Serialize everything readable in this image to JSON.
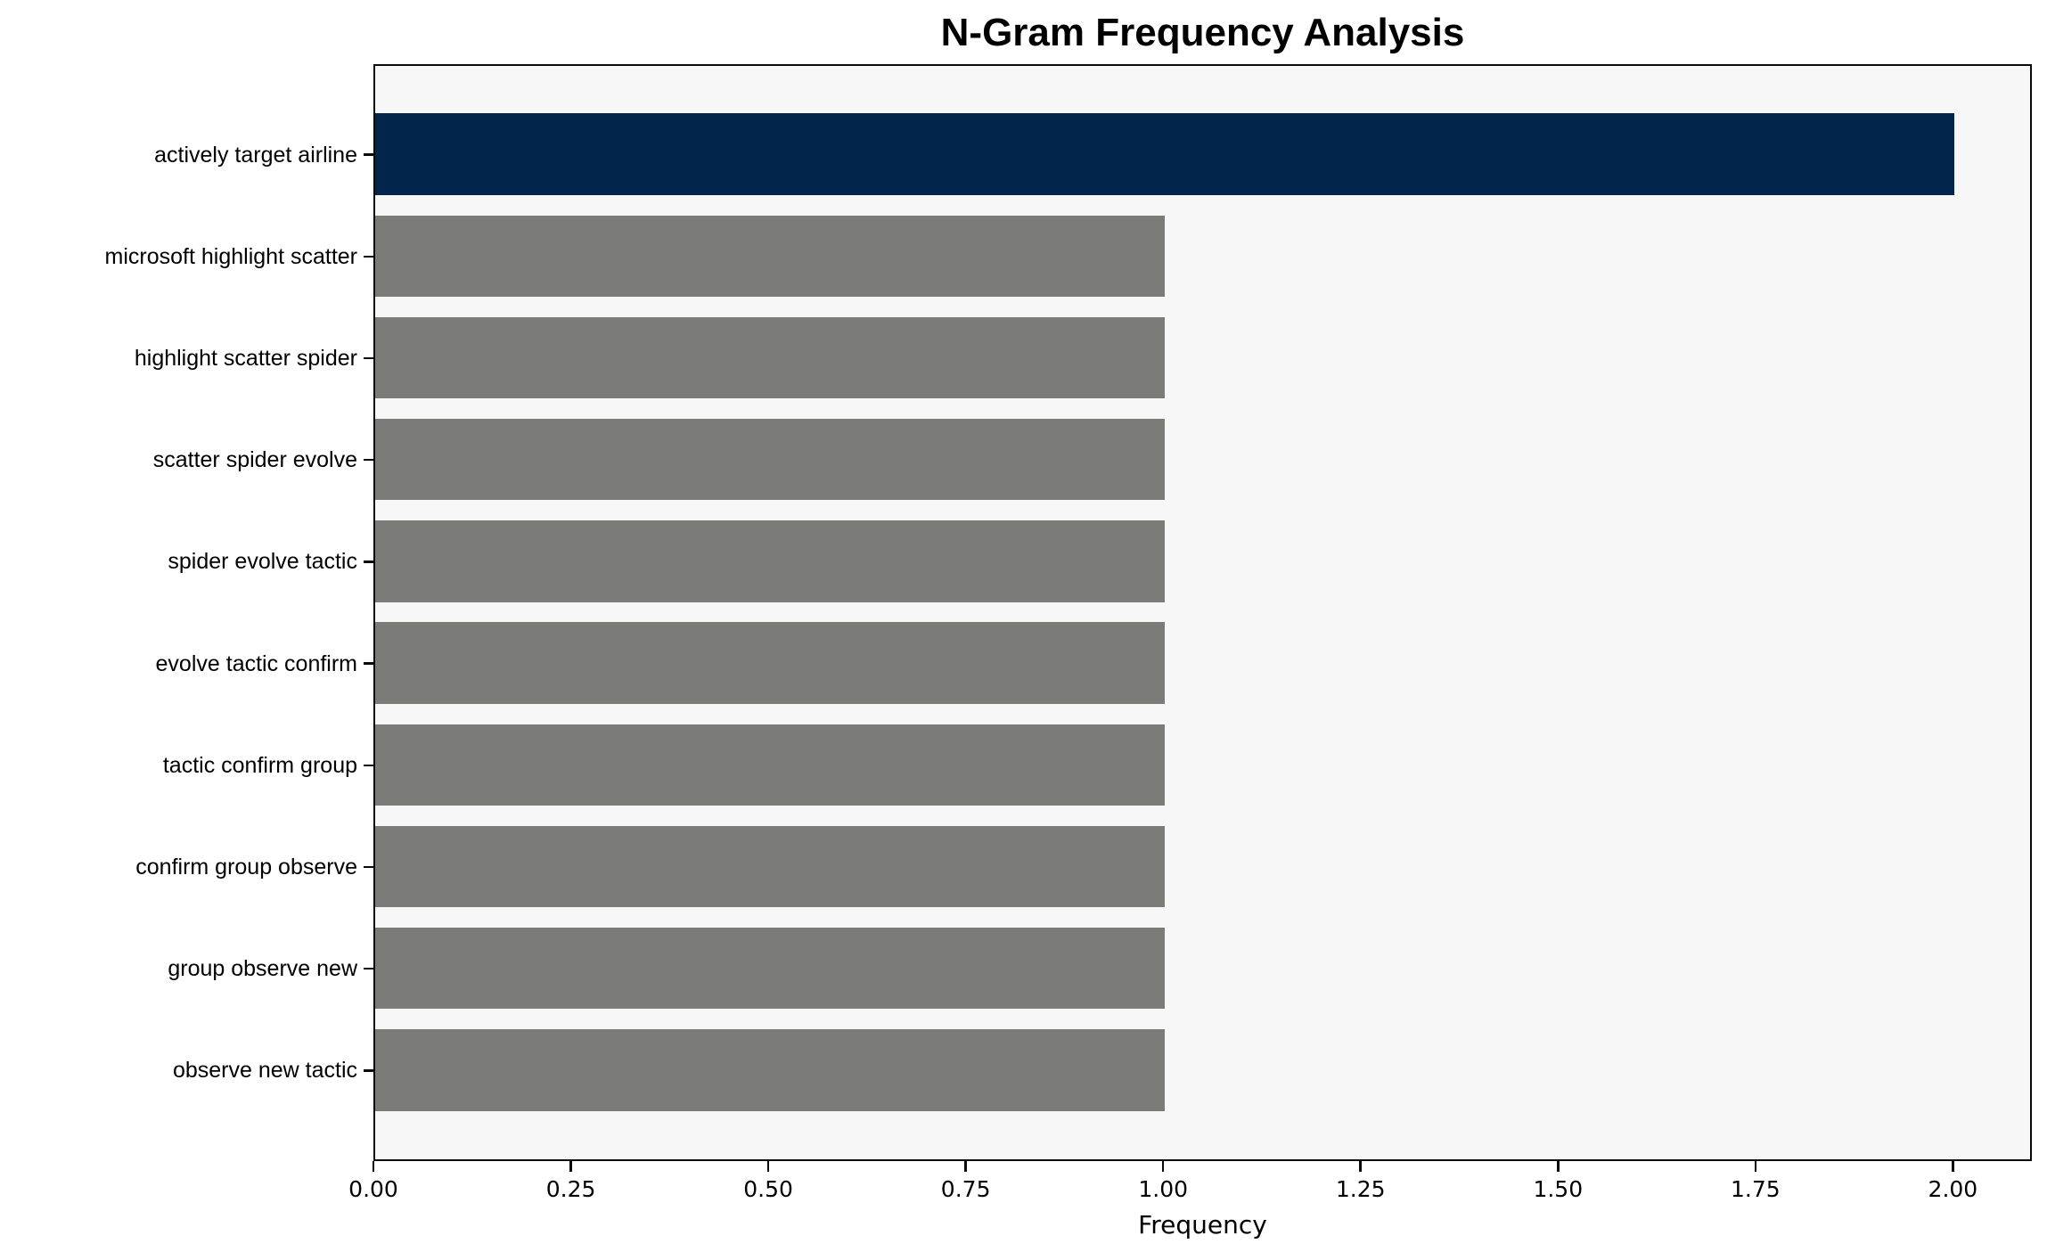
{
  "chart_data": {
    "type": "bar",
    "orientation": "horizontal",
    "title": "N-Gram Frequency Analysis",
    "xlabel": "Frequency",
    "ylabel": "",
    "categories": [
      "actively target airline",
      "microsoft highlight scatter",
      "highlight scatter spider",
      "scatter spider evolve",
      "spider evolve tactic",
      "evolve tactic confirm",
      "tactic confirm group",
      "confirm group observe",
      "group observe new",
      "observe new tactic"
    ],
    "values": [
      2,
      1,
      1,
      1,
      1,
      1,
      1,
      1,
      1,
      1
    ],
    "xlim": [
      0,
      2.1
    ],
    "xticks": [
      0,
      0.25,
      0.5,
      0.75,
      1.0,
      1.25,
      1.5,
      1.75,
      2.0
    ],
    "xtick_labels": [
      "0.00",
      "0.25",
      "0.50",
      "0.75",
      "1.00",
      "1.25",
      "1.50",
      "1.75",
      "2.00"
    ],
    "grid": false,
    "legend": "none",
    "bar_height_fraction": 0.8,
    "colors": {
      "bar_highlight": "#02254c",
      "bar_default": "#7b7b78",
      "plot_background": "#f7f7f7",
      "figure_background": "#ffffff",
      "spine": "#0a0a0a",
      "text": "#000000"
    },
    "highlight_rule": "bar with maximum value"
  }
}
